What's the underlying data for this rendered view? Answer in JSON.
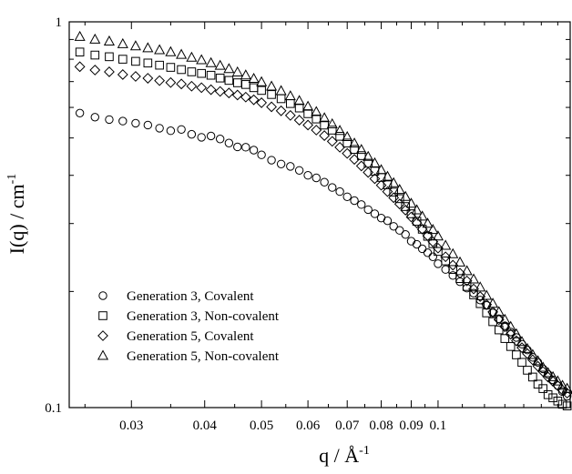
{
  "chart_data": {
    "type": "scatter",
    "title": "",
    "xlabel": "q / Å",
    "xlabel_exponent": "-1",
    "ylabel": "I(q) / cm",
    "ylabel_exponent": "-1",
    "xscale": "log",
    "yscale": "log",
    "xlim": [
      0.0235,
      0.168
    ],
    "ylim": [
      0.1,
      1
    ],
    "x_tick_labels": [
      "0.03",
      "0.04",
      "0.05",
      "0.06",
      "0.07",
      "0.08",
      "0.09",
      "0.1"
    ],
    "y_tick_labels": [
      "0.1",
      "1"
    ],
    "legend_position": "lower-left",
    "grid": false,
    "series": [
      {
        "name": "Generation 3, Covalent",
        "marker": "circle",
        "x": [
          0.0245,
          0.026,
          0.0275,
          0.029,
          0.0305,
          0.032,
          0.0335,
          0.035,
          0.0365,
          0.038,
          0.0395,
          0.041,
          0.0425,
          0.044,
          0.0455,
          0.047,
          0.0485,
          0.05,
          0.052,
          0.054,
          0.056,
          0.058,
          0.06,
          0.062,
          0.064,
          0.066,
          0.068,
          0.07,
          0.072,
          0.074,
          0.076,
          0.078,
          0.08,
          0.082,
          0.084,
          0.086,
          0.088,
          0.09,
          0.092,
          0.094,
          0.096,
          0.098,
          0.1,
          0.103,
          0.106,
          0.109,
          0.112,
          0.115,
          0.118,
          0.121,
          0.124,
          0.127,
          0.13,
          0.133,
          0.136,
          0.139,
          0.142,
          0.145,
          0.148,
          0.151,
          0.154,
          0.157,
          0.16,
          0.163,
          0.166
        ],
        "y": [
          0.58,
          0.566,
          0.558,
          0.553,
          0.546,
          0.54,
          0.53,
          0.522,
          0.526,
          0.511,
          0.502,
          0.506,
          0.497,
          0.485,
          0.474,
          0.473,
          0.465,
          0.452,
          0.438,
          0.428,
          0.422,
          0.412,
          0.4,
          0.394,
          0.384,
          0.372,
          0.363,
          0.352,
          0.344,
          0.336,
          0.326,
          0.318,
          0.31,
          0.305,
          0.295,
          0.288,
          0.281,
          0.27,
          0.265,
          0.258,
          0.252,
          0.246,
          0.236,
          0.228,
          0.22,
          0.212,
          0.204,
          0.198,
          0.19,
          0.184,
          0.176,
          0.17,
          0.163,
          0.157,
          0.152,
          0.146,
          0.141,
          0.135,
          0.131,
          0.126,
          0.122,
          0.118,
          0.114,
          0.11,
          0.107
        ]
      },
      {
        "name": "Generation 3, Non-covalent",
        "marker": "square",
        "x": [
          0.0245,
          0.026,
          0.0275,
          0.029,
          0.0305,
          0.032,
          0.0335,
          0.035,
          0.0365,
          0.038,
          0.0395,
          0.041,
          0.0425,
          0.044,
          0.0455,
          0.047,
          0.0485,
          0.05,
          0.052,
          0.054,
          0.056,
          0.058,
          0.06,
          0.062,
          0.064,
          0.066,
          0.068,
          0.07,
          0.072,
          0.074,
          0.076,
          0.078,
          0.08,
          0.082,
          0.084,
          0.086,
          0.088,
          0.09,
          0.092,
          0.094,
          0.096,
          0.098,
          0.1,
          0.103,
          0.106,
          0.109,
          0.112,
          0.115,
          0.118,
          0.121,
          0.124,
          0.127,
          0.13,
          0.133,
          0.136,
          0.139,
          0.142,
          0.145,
          0.148,
          0.151,
          0.154,
          0.157,
          0.16,
          0.163,
          0.166
        ],
        "y": [
          0.835,
          0.82,
          0.812,
          0.8,
          0.79,
          0.782,
          0.772,
          0.762,
          0.752,
          0.742,
          0.735,
          0.727,
          0.715,
          0.705,
          0.695,
          0.688,
          0.675,
          0.664,
          0.648,
          0.632,
          0.614,
          0.598,
          0.578,
          0.56,
          0.54,
          0.524,
          0.505,
          0.485,
          0.467,
          0.45,
          0.43,
          0.41,
          0.395,
          0.378,
          0.362,
          0.348,
          0.332,
          0.318,
          0.304,
          0.29,
          0.278,
          0.266,
          0.254,
          0.24,
          0.228,
          0.216,
          0.206,
          0.196,
          0.186,
          0.176,
          0.167,
          0.159,
          0.151,
          0.144,
          0.137,
          0.131,
          0.125,
          0.12,
          0.115,
          0.112,
          0.108,
          0.106,
          0.104,
          0.102,
          0.101
        ]
      },
      {
        "name": "Generation 5, Covalent",
        "marker": "diamond",
        "x": [
          0.0245,
          0.026,
          0.0275,
          0.029,
          0.0305,
          0.032,
          0.0335,
          0.035,
          0.0365,
          0.038,
          0.0395,
          0.041,
          0.0425,
          0.044,
          0.0455,
          0.047,
          0.0485,
          0.05,
          0.052,
          0.054,
          0.056,
          0.058,
          0.06,
          0.062,
          0.064,
          0.066,
          0.068,
          0.07,
          0.072,
          0.074,
          0.076,
          0.078,
          0.08,
          0.082,
          0.084,
          0.086,
          0.088,
          0.09,
          0.092,
          0.094,
          0.096,
          0.098,
          0.1,
          0.103,
          0.106,
          0.109,
          0.112,
          0.115,
          0.118,
          0.121,
          0.124,
          0.127,
          0.13,
          0.133,
          0.136,
          0.139,
          0.142,
          0.145,
          0.148,
          0.151,
          0.154,
          0.157,
          0.16,
          0.163,
          0.166
        ],
        "y": [
          0.765,
          0.75,
          0.742,
          0.73,
          0.722,
          0.714,
          0.704,
          0.696,
          0.69,
          0.681,
          0.675,
          0.667,
          0.66,
          0.654,
          0.646,
          0.638,
          0.628,
          0.617,
          0.602,
          0.588,
          0.572,
          0.556,
          0.54,
          0.524,
          0.507,
          0.49,
          0.473,
          0.456,
          0.44,
          0.423,
          0.407,
          0.392,
          0.377,
          0.363,
          0.35,
          0.337,
          0.325,
          0.312,
          0.301,
          0.29,
          0.279,
          0.269,
          0.259,
          0.246,
          0.234,
          0.223,
          0.213,
          0.203,
          0.194,
          0.185,
          0.177,
          0.169,
          0.162,
          0.155,
          0.149,
          0.143,
          0.138,
          0.133,
          0.128,
          0.124,
          0.12,
          0.117,
          0.114,
          0.111,
          0.109
        ]
      },
      {
        "name": "Generation 5, Non-covalent",
        "marker": "triangle",
        "x": [
          0.0245,
          0.026,
          0.0275,
          0.029,
          0.0305,
          0.032,
          0.0335,
          0.035,
          0.0365,
          0.038,
          0.0395,
          0.041,
          0.0425,
          0.044,
          0.0455,
          0.047,
          0.0485,
          0.05,
          0.052,
          0.054,
          0.056,
          0.058,
          0.06,
          0.062,
          0.064,
          0.066,
          0.068,
          0.07,
          0.072,
          0.074,
          0.076,
          0.078,
          0.08,
          0.082,
          0.084,
          0.086,
          0.088,
          0.09,
          0.092,
          0.094,
          0.096,
          0.098,
          0.1,
          0.103,
          0.106,
          0.109,
          0.112,
          0.115,
          0.118,
          0.121,
          0.124,
          0.127,
          0.13,
          0.133,
          0.136,
          0.139,
          0.142,
          0.145,
          0.148,
          0.151,
          0.154,
          0.157,
          0.16,
          0.163,
          0.166
        ],
        "y": [
          0.915,
          0.9,
          0.89,
          0.876,
          0.865,
          0.855,
          0.845,
          0.835,
          0.822,
          0.808,
          0.796,
          0.782,
          0.77,
          0.755,
          0.74,
          0.727,
          0.712,
          0.698,
          0.68,
          0.662,
          0.642,
          0.624,
          0.603,
          0.584,
          0.563,
          0.543,
          0.522,
          0.503,
          0.484,
          0.466,
          0.447,
          0.43,
          0.413,
          0.397,
          0.382,
          0.367,
          0.352,
          0.338,
          0.325,
          0.313,
          0.3,
          0.289,
          0.278,
          0.263,
          0.25,
          0.238,
          0.226,
          0.215,
          0.205,
          0.195,
          0.186,
          0.177,
          0.169,
          0.162,
          0.155,
          0.148,
          0.142,
          0.137,
          0.132,
          0.127,
          0.123,
          0.12,
          0.117,
          0.114,
          0.112
        ]
      }
    ]
  }
}
